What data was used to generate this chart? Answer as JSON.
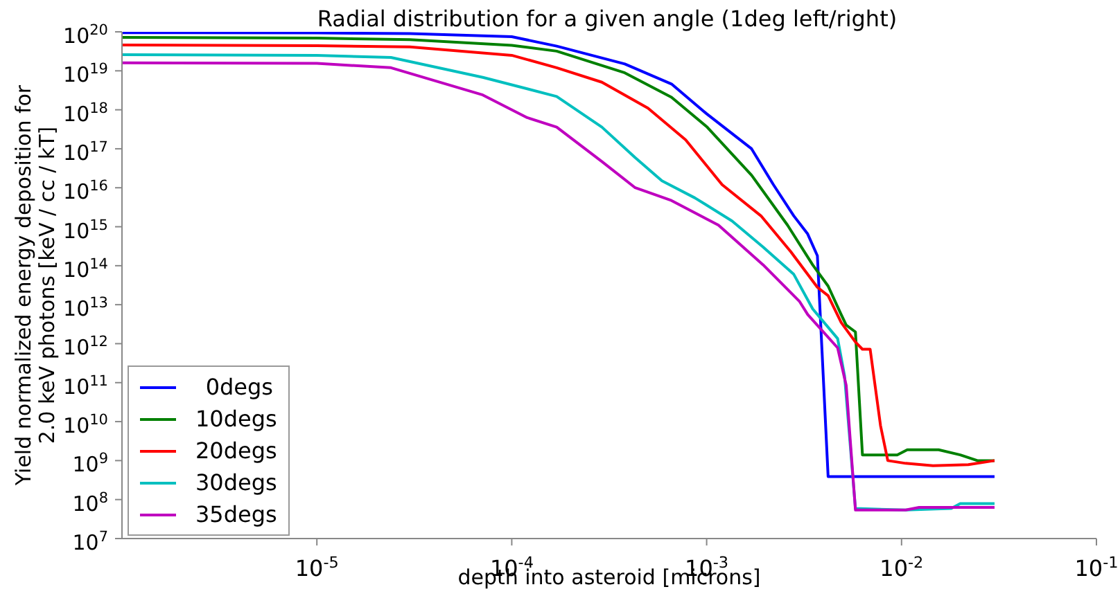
{
  "chart_data": {
    "type": "line",
    "title": "Radial distribution for a given angle (1deg left/right)",
    "xlabel": "depth into asteroid  [microns]",
    "ylabel": "Yield normalized energy deposition for\n2.0 keV photons [keV / cc / kT]",
    "log": "xy",
    "grid": false,
    "legend": "bottom left",
    "marker": "none",
    "line_style": "solid",
    "xlim": [
      1e-06,
      0.1
    ],
    "ylim": [
      10000000.0,
      1e+20
    ],
    "xticks": [
      {
        "value": 1e-05,
        "label": "10$^{-5}$"
      },
      {
        "value": 0.0001,
        "label": "10$^{-4}$"
      },
      {
        "value": 0.001,
        "label": "10$^{-3}$"
      },
      {
        "value": 0.01,
        "label": "10$^{-2}$"
      },
      {
        "value": 0.1,
        "label": "10$^{-1}$"
      }
    ],
    "yticks": [
      {
        "value": 10000000.0,
        "label": "10$^{7}$"
      },
      {
        "value": 100000000.0,
        "label": "10$^{8}$"
      },
      {
        "value": 1000000000.0,
        "label": "10$^{9}$"
      },
      {
        "value": 10000000000.0,
        "label": "10$^{10}$"
      },
      {
        "value": 100000000000.0,
        "label": "10$^{11}$"
      },
      {
        "value": 1000000000000.0,
        "label": "10$^{12}$"
      },
      {
        "value": 10000000000000.0,
        "label": "10$^{13}$"
      },
      {
        "value": 100000000000000.0,
        "label": "10$^{14}$"
      },
      {
        "value": 1000000000000000.0,
        "label": "10$^{15}$"
      },
      {
        "value": 1e+16,
        "label": "10$^{16}$"
      },
      {
        "value": 1e+17,
        "label": "10$^{17}$"
      },
      {
        "value": 1e+18,
        "label": "10$^{18}$"
      },
      {
        "value": 1e+19,
        "label": "10$^{19}$"
      },
      {
        "value": 1e+20,
        "label": "10$^{20}$"
      }
    ],
    "series": [
      {
        "name": "0degs",
        "color": "#0000ff",
        "x": [
          1e-06,
          1e-05,
          3e-05,
          0.0001,
          0.00017,
          0.00038,
          0.00066,
          0.001,
          0.0017,
          0.0022,
          0.0028,
          0.0033,
          0.0037,
          0.0042,
          0.03
        ],
        "values": [
          9.5e+19,
          9.4e+19,
          9e+19,
          7.5e+19,
          4.3e+19,
          1.5e+19,
          4.6e+18,
          7.9e+17,
          1e+17,
          1.2e+16,
          1900000000000000.0,
          650000000000000.0,
          180000000000000.0,
          390000000.0,
          390000000.0
        ]
      },
      {
        "name": "10degs",
        "color": "#008000",
        "x": [
          1e-06,
          1e-05,
          3e-05,
          0.0001,
          0.00017,
          0.00038,
          0.00066,
          0.001,
          0.0017,
          0.0026,
          0.0035,
          0.0042,
          0.0049,
          0.0052,
          0.0058,
          0.0063,
          0.0095,
          0.0107,
          0.0155,
          0.02,
          0.0245,
          0.03
        ],
        "values": [
          7.2e+19,
          6.9e+19,
          6.3e+19,
          4.5e+19,
          3.2e+19,
          8.9e+18,
          2.1e+18,
          3.7e+17,
          2.1e+16,
          1100000000000000.0,
          105000000000000.0,
          30000000000000.0,
          5600000000000.0,
          3000000000000.0,
          2000000000000.0,
          1400000000.0,
          1400000000.0,
          1900000000.0,
          1900000000.0,
          1400000000.0,
          1000000000.0,
          1000000000.0
        ]
      },
      {
        "name": "20degs",
        "color": "#ff0000",
        "x": [
          1e-06,
          1e-05,
          3e-05,
          0.0001,
          0.00017,
          0.00029,
          0.0005,
          0.00078,
          0.0012,
          0.0019,
          0.0027,
          0.0037,
          0.0042,
          0.0049,
          0.0058,
          0.0063,
          0.0069,
          0.0078,
          0.0085,
          0.0105,
          0.0145,
          0.022,
          0.03
        ],
        "values": [
          4.6e+19,
          4.4e+19,
          4.1e+19,
          2.5e+19,
          1.2e+19,
          5.1e+18,
          1.1e+18,
          1.7e+17,
          1.2e+16,
          1900000000000000.0,
          230000000000000.0,
          28000000000000.0,
          17000000000000.0,
          3500000000000.0,
          1100000000000.0,
          720000000000.0,
          720000000000.0,
          7900000000.0,
          1000000000.0,
          850000000.0,
          740000000.0,
          790000000.0,
          1000000000.0
        ]
      },
      {
        "name": "30degs",
        "color": "#00bfbf",
        "x": [
          1e-06,
          1e-05,
          2.4e-05,
          7.1e-05,
          0.00017,
          0.00029,
          0.00043,
          0.00059,
          0.00087,
          0.00135,
          0.00195,
          0.0028,
          0.0035,
          0.0047,
          0.0051,
          0.0058,
          0.0105,
          0.018,
          0.02,
          0.03
        ],
        "values": [
          2.6e+19,
          2.5e+19,
          2.2e+19,
          6.8e+18,
          2.2e+18,
          3.6e+17,
          5.9e+16,
          1.5e+16,
          5500000000000000.0,
          1400000000000000.0,
          300000000000000.0,
          60000000000000.0,
          7800000000000.0,
          1350000000000.0,
          150000000000.0,
          59000000.0,
          54000000.0,
          59000000.0,
          79000000.0,
          79000000.0
        ]
      },
      {
        "name": "35degs",
        "color": "#bf00bf",
        "x": [
          1e-06,
          1e-05,
          2.4e-05,
          7.1e-05,
          0.00012,
          0.00017,
          0.00029,
          0.00043,
          0.00066,
          0.00115,
          0.00195,
          0.003,
          0.0033,
          0.0047,
          0.0052,
          0.0058,
          0.0105,
          0.0123,
          0.03
        ],
        "values": [
          1.6e+19,
          1.55e+19,
          1.2e+19,
          2.4e+18,
          6.3e+17,
          3.6e+17,
          4.7e+16,
          1e+16,
          4700000000000000.0,
          1100000000000000.0,
          105000000000000.0,
          12000000000000.0,
          5600000000000.0,
          780000000000.0,
          85000000000.0,
          54000000.0,
          54000000.0,
          63000000.0,
          63000000.0
        ]
      }
    ]
  }
}
